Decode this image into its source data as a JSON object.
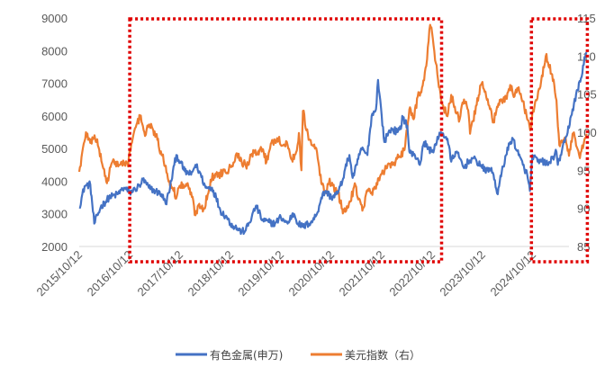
{
  "chart_data": {
    "type": "line",
    "x_start": "2015/10/12",
    "x_end": "2025/06/30",
    "xtick_labels": [
      "2015/10/12",
      "2016/10/12",
      "2017/10/12",
      "2018/10/12",
      "2019/10/12",
      "2020/10/12",
      "2021/10/12",
      "2022/10/12",
      "2023/10/12",
      "2024/10/12"
    ],
    "ylim_left": [
      2000,
      9000
    ],
    "yticks_left": [
      "2000",
      "3000",
      "4000",
      "5000",
      "6000",
      "7000",
      "8000",
      "9000"
    ],
    "ylim_right": [
      85,
      115
    ],
    "yticks_right": [
      "85",
      "90",
      "95",
      "100",
      "105",
      "110",
      "115"
    ],
    "grid": false,
    "legend_position": "bottom",
    "series": [
      {
        "name": "有色金属(申万)",
        "axis": "left",
        "color": "#4472C4",
        "points": [
          [
            "2015/10/12",
            3200
          ],
          [
            "2015/11/20",
            3850
          ],
          [
            "2015/12/31",
            3900
          ],
          [
            "2016/01/29",
            2700
          ],
          [
            "2016/03/15",
            3200
          ],
          [
            "2016/05/15",
            3500
          ],
          [
            "2016/07/15",
            3600
          ],
          [
            "2016/09/01",
            3800
          ],
          [
            "2016/10/12",
            3650
          ],
          [
            "2016/11/20",
            3750
          ],
          [
            "2016/12/31",
            3900
          ],
          [
            "2017/01/15",
            4050
          ],
          [
            "2017/02/28",
            3800
          ],
          [
            "2017/04/15",
            3700
          ],
          [
            "2017/05/31",
            3600
          ],
          [
            "2017/06/30",
            3300
          ],
          [
            "2017/07/31",
            3800
          ],
          [
            "2017/08/31",
            4500
          ],
          [
            "2017/09/15",
            4800
          ],
          [
            "2017/10/12",
            4600
          ],
          [
            "2017/11/15",
            4300
          ],
          [
            "2017/12/31",
            4200
          ],
          [
            "2018/01/31",
            4500
          ],
          [
            "2018/02/28",
            4300
          ],
          [
            "2018/04/15",
            3800
          ],
          [
            "2018/05/31",
            3800
          ],
          [
            "2018/06/30",
            3500
          ],
          [
            "2018/07/31",
            3100
          ],
          [
            "2018/09/15",
            2900
          ],
          [
            "2018/10/12",
            2700
          ],
          [
            "2018/11/15",
            2600
          ],
          [
            "2018/12/31",
            2450
          ],
          [
            "2019/01/31",
            2500
          ],
          [
            "2019/03/15",
            2900
          ],
          [
            "2019/04/15",
            3250
          ],
          [
            "2019/05/31",
            2800
          ],
          [
            "2019/07/15",
            2750
          ],
          [
            "2019/08/31",
            2700
          ],
          [
            "2019/10/12",
            2900
          ],
          [
            "2019/11/30",
            2700
          ],
          [
            "2019/12/31",
            2950
          ],
          [
            "2020/01/15",
            3000
          ],
          [
            "2020/02/15",
            2700
          ],
          [
            "2020/03/20",
            2600
          ],
          [
            "2020/04/30",
            2700
          ],
          [
            "2020/05/31",
            2800
          ],
          [
            "2020/06/30",
            3000
          ],
          [
            "2020/07/31",
            3500
          ],
          [
            "2020/08/31",
            3700
          ],
          [
            "2020/10/12",
            3500
          ],
          [
            "2020/11/30",
            3650
          ],
          [
            "2020/12/31",
            4000
          ],
          [
            "2021/01/15",
            4300
          ],
          [
            "2021/02/20",
            4800
          ],
          [
            "2021/03/15",
            4100
          ],
          [
            "2021/04/15",
            4500
          ],
          [
            "2021/05/15",
            5000
          ],
          [
            "2021/06/30",
            4800
          ],
          [
            "2021/07/31",
            6000
          ],
          [
            "2021/08/31",
            6200
          ],
          [
            "2021/09/15",
            7100
          ],
          [
            "2021/10/12",
            6000
          ],
          [
            "2021/10/31",
            5200
          ],
          [
            "2021/11/30",
            5500
          ],
          [
            "2021/12/31",
            5600
          ],
          [
            "2022/01/31",
            5500
          ],
          [
            "2022/02/28",
            5600
          ],
          [
            "2022/03/10",
            6000
          ],
          [
            "2022/04/15",
            5700
          ],
          [
            "2022/04/30",
            4900
          ],
          [
            "2022/05/31",
            4800
          ],
          [
            "2022/06/30",
            4700
          ],
          [
            "2022/07/15",
            4500
          ],
          [
            "2022/08/15",
            5200
          ],
          [
            "2022/09/15",
            5000
          ],
          [
            "2022/10/12",
            4900
          ],
          [
            "2022/11/15",
            5200
          ],
          [
            "2022/12/15",
            5500
          ],
          [
            "2023/01/31",
            5300
          ],
          [
            "2023/02/28",
            4600
          ],
          [
            "2023/03/31",
            4900
          ],
          [
            "2023/04/30",
            4700
          ],
          [
            "2023/05/31",
            4400
          ],
          [
            "2023/06/30",
            4600
          ],
          [
            "2023/07/31",
            4700
          ],
          [
            "2023/08/31",
            4600
          ],
          [
            "2023/09/30",
            4500
          ],
          [
            "2023/10/31",
            4300
          ],
          [
            "2023/11/30",
            4400
          ],
          [
            "2023/12/31",
            4200
          ],
          [
            "2024/01/31",
            3600
          ],
          [
            "2024/02/29",
            4300
          ],
          [
            "2024/03/31",
            4800
          ],
          [
            "2024/04/30",
            5200
          ],
          [
            "2024/05/20",
            5300
          ],
          [
            "2024/06/30",
            4800
          ],
          [
            "2024/07/31",
            4500
          ],
          [
            "2024/08/31",
            4200
          ],
          [
            "2024/09/20",
            3700
          ],
          [
            "2024/10/08",
            4800
          ],
          [
            "2024/11/15",
            4600
          ],
          [
            "2024/12/31",
            4600
          ],
          [
            "2025/01/31",
            4500
          ],
          [
            "2025/02/28",
            4700
          ],
          [
            "2025/03/31",
            4900
          ],
          [
            "2025/04/10",
            4500
          ],
          [
            "2025/04/30",
            4800
          ],
          [
            "2025/05/31",
            5200
          ],
          [
            "2025/06/15",
            5400
          ],
          [
            "2025/07/15",
            6000
          ],
          [
            "2025/08/31",
            6800
          ],
          [
            "2025/09/30",
            7200
          ],
          [
            "2025/10/20",
            7800
          ],
          [
            "2025/11/05",
            7950
          ]
        ]
      },
      {
        "name": "美元指数（右）",
        "axis": "right",
        "color": "#ED7D31",
        "points": [
          [
            "2015/10/12",
            94.8
          ],
          [
            "2015/11/30",
            100.0
          ],
          [
            "2015/12/31",
            98.6
          ],
          [
            "2016/01/31",
            99.6
          ],
          [
            "2016/02/29",
            98.0
          ],
          [
            "2016/04/30",
            93.3
          ],
          [
            "2016/05/31",
            95.8
          ],
          [
            "2016/06/30",
            96.1
          ],
          [
            "2016/07/31",
            95.7
          ],
          [
            "2016/08/31",
            96.0
          ],
          [
            "2016/09/30",
            95.5
          ],
          [
            "2016/10/12",
            97.6
          ],
          [
            "2016/11/30",
            101.0
          ],
          [
            "2016/12/31",
            102.2
          ],
          [
            "2017/01/31",
            99.5
          ],
          [
            "2017/02/28",
            101.0
          ],
          [
            "2017/03/31",
            100.3
          ],
          [
            "2017/04/30",
            99.0
          ],
          [
            "2017/05/31",
            97.0
          ],
          [
            "2017/06/30",
            95.6
          ],
          [
            "2017/07/31",
            92.9
          ],
          [
            "2017/08/31",
            92.7
          ],
          [
            "2017/09/08",
            91.3
          ],
          [
            "2017/10/12",
            93.0
          ],
          [
            "2017/11/30",
            93.0
          ],
          [
            "2017/12/31",
            92.1
          ],
          [
            "2018/01/31",
            89.1
          ],
          [
            "2018/02/28",
            90.6
          ],
          [
            "2018/03/31",
            89.9
          ],
          [
            "2018/04/30",
            91.8
          ],
          [
            "2018/05/31",
            94.0
          ],
          [
            "2018/06/30",
            94.5
          ],
          [
            "2018/07/31",
            94.5
          ],
          [
            "2018/08/31",
            95.1
          ],
          [
            "2018/09/30",
            95.1
          ],
          [
            "2018/10/12",
            95.5
          ],
          [
            "2018/11/30",
            97.2
          ],
          [
            "2018/12/31",
            96.2
          ],
          [
            "2019/01/31",
            95.6
          ],
          [
            "2019/02/28",
            96.4
          ],
          [
            "2019/03/31",
            97.3
          ],
          [
            "2019/04/30",
            97.5
          ],
          [
            "2019/05/31",
            97.8
          ],
          [
            "2019/06/30",
            96.1
          ],
          [
            "2019/07/31",
            98.5
          ],
          [
            "2019/08/31",
            98.9
          ],
          [
            "2019/09/30",
            99.4
          ],
          [
            "2019/10/12",
            98.3
          ],
          [
            "2019/11/30",
            98.3
          ],
          [
            "2019/12/31",
            96.4
          ],
          [
            "2020/01/31",
            97.4
          ],
          [
            "2020/02/20",
            99.9
          ],
          [
            "2020/03/09",
            95.0
          ],
          [
            "2020/03/20",
            102.8
          ],
          [
            "2020/04/30",
            99.0
          ],
          [
            "2020/05/31",
            98.3
          ],
          [
            "2020/06/30",
            97.4
          ],
          [
            "2020/07/31",
            93.3
          ],
          [
            "2020/08/31",
            92.1
          ],
          [
            "2020/09/30",
            93.9
          ],
          [
            "2020/10/12",
            93.0
          ],
          [
            "2020/11/30",
            91.9
          ],
          [
            "2020/12/31",
            89.9
          ],
          [
            "2021/01/06",
            89.4
          ],
          [
            "2021/02/28",
            90.9
          ],
          [
            "2021/03/31",
            93.3
          ],
          [
            "2021/04/30",
            91.3
          ],
          [
            "2021/05/25",
            89.7
          ],
          [
            "2021/06/30",
            92.4
          ],
          [
            "2021/07/31",
            92.1
          ],
          [
            "2021/08/31",
            92.6
          ],
          [
            "2021/09/30",
            94.2
          ],
          [
            "2021/10/12",
            94.5
          ],
          [
            "2021/11/30",
            95.9
          ],
          [
            "2021/12/31",
            95.7
          ],
          [
            "2022/01/31",
            96.5
          ],
          [
            "2022/02/28",
            96.7
          ],
          [
            "2022/03/31",
            98.3
          ],
          [
            "2022/04/30",
            103.0
          ],
          [
            "2022/05/31",
            101.7
          ],
          [
            "2022/06/30",
            104.7
          ],
          [
            "2022/07/31",
            105.9
          ],
          [
            "2022/08/31",
            108.7
          ],
          [
            "2022/09/28",
            114.1
          ],
          [
            "2022/10/12",
            113.1
          ],
          [
            "2022/11/30",
            105.9
          ],
          [
            "2022/12/31",
            103.5
          ],
          [
            "2023/01/31",
            102.1
          ],
          [
            "2023/02/28",
            104.9
          ],
          [
            "2023/03/31",
            102.6
          ],
          [
            "2023/04/30",
            101.7
          ],
          [
            "2023/05/31",
            104.3
          ],
          [
            "2023/06/30",
            102.9
          ],
          [
            "2023/07/14",
            99.8
          ],
          [
            "2023/08/31",
            103.6
          ],
          [
            "2023/09/30",
            106.2
          ],
          [
            "2023/10/12",
            106.6
          ],
          [
            "2023/11/30",
            103.5
          ],
          [
            "2023/12/31",
            101.3
          ],
          [
            "2024/01/31",
            103.3
          ],
          [
            "2024/02/29",
            104.2
          ],
          [
            "2024/03/31",
            104.5
          ],
          [
            "2024/04/30",
            106.2
          ],
          [
            "2024/05/31",
            104.7
          ],
          [
            "2024/06/30",
            105.9
          ],
          [
            "2024/07/31",
            104.1
          ],
          [
            "2024/08/31",
            101.7
          ],
          [
            "2024/09/27",
            100.4
          ],
          [
            "2024/10/12",
            102.9
          ],
          [
            "2024/11/30",
            105.7
          ],
          [
            "2024/12/31",
            108.5
          ],
          [
            "2025/01/13",
            110.0
          ],
          [
            "2025/02/28",
            107.6
          ],
          [
            "2025/03/31",
            104.2
          ],
          [
            "2025/04/21",
            98.3
          ],
          [
            "2025/05/31",
            99.3
          ],
          [
            "2025/06/30",
            96.9
          ],
          [
            "2025/07/31",
            99.9
          ],
          [
            "2025/08/31",
            97.8
          ],
          [
            "2025/09/17",
            96.6
          ],
          [
            "2025/10/15",
            98.5
          ],
          [
            "2025/11/05",
            99.8
          ]
        ]
      }
    ],
    "highlight_boxes": [
      {
        "style": "red-dotted",
        "from": "2016/10/12",
        "to": "2022/12/20"
      },
      {
        "style": "red-dotted",
        "from": "2024/10/01",
        "to": "2025/11/10"
      }
    ]
  }
}
